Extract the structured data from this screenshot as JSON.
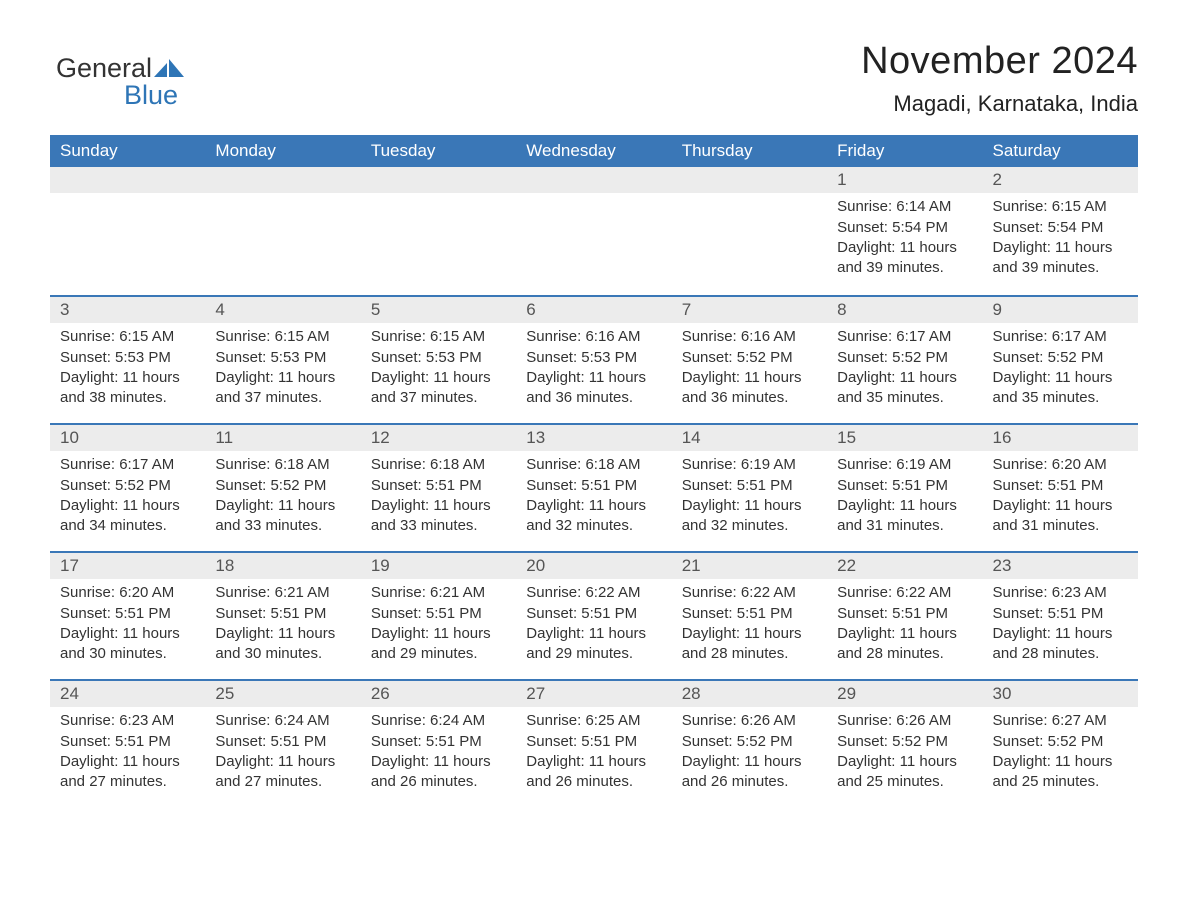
{
  "logo": {
    "word1": "General",
    "word2": "Blue"
  },
  "header": {
    "title": "November 2024",
    "subtitle": "Magadi, Karnataka, India"
  },
  "colors": {
    "header_bg": "#3a77b7",
    "header_text": "#ffffff",
    "daynum_bg": "#ececec",
    "row_border": "#3a77b7",
    "body_text": "#333333",
    "logo_blue": "#2e75b6",
    "page_bg": "#ffffff"
  },
  "fonts": {
    "title_size": 38,
    "subtitle_size": 22,
    "weekday_size": 17,
    "daynum_size": 17,
    "content_size": 15
  },
  "weekdays": [
    "Sunday",
    "Monday",
    "Tuesday",
    "Wednesday",
    "Thursday",
    "Friday",
    "Saturday"
  ],
  "weeks": [
    [
      {
        "day": "",
        "sunrise": "",
        "sunset": "",
        "daylight": ""
      },
      {
        "day": "",
        "sunrise": "",
        "sunset": "",
        "daylight": ""
      },
      {
        "day": "",
        "sunrise": "",
        "sunset": "",
        "daylight": ""
      },
      {
        "day": "",
        "sunrise": "",
        "sunset": "",
        "daylight": ""
      },
      {
        "day": "",
        "sunrise": "",
        "sunset": "",
        "daylight": ""
      },
      {
        "day": "1",
        "sunrise": "Sunrise: 6:14 AM",
        "sunset": "Sunset: 5:54 PM",
        "daylight": "Daylight: 11 hours and 39 minutes."
      },
      {
        "day": "2",
        "sunrise": "Sunrise: 6:15 AM",
        "sunset": "Sunset: 5:54 PM",
        "daylight": "Daylight: 11 hours and 39 minutes."
      }
    ],
    [
      {
        "day": "3",
        "sunrise": "Sunrise: 6:15 AM",
        "sunset": "Sunset: 5:53 PM",
        "daylight": "Daylight: 11 hours and 38 minutes."
      },
      {
        "day": "4",
        "sunrise": "Sunrise: 6:15 AM",
        "sunset": "Sunset: 5:53 PM",
        "daylight": "Daylight: 11 hours and 37 minutes."
      },
      {
        "day": "5",
        "sunrise": "Sunrise: 6:15 AM",
        "sunset": "Sunset: 5:53 PM",
        "daylight": "Daylight: 11 hours and 37 minutes."
      },
      {
        "day": "6",
        "sunrise": "Sunrise: 6:16 AM",
        "sunset": "Sunset: 5:53 PM",
        "daylight": "Daylight: 11 hours and 36 minutes."
      },
      {
        "day": "7",
        "sunrise": "Sunrise: 6:16 AM",
        "sunset": "Sunset: 5:52 PM",
        "daylight": "Daylight: 11 hours and 36 minutes."
      },
      {
        "day": "8",
        "sunrise": "Sunrise: 6:17 AM",
        "sunset": "Sunset: 5:52 PM",
        "daylight": "Daylight: 11 hours and 35 minutes."
      },
      {
        "day": "9",
        "sunrise": "Sunrise: 6:17 AM",
        "sunset": "Sunset: 5:52 PM",
        "daylight": "Daylight: 11 hours and 35 minutes."
      }
    ],
    [
      {
        "day": "10",
        "sunrise": "Sunrise: 6:17 AM",
        "sunset": "Sunset: 5:52 PM",
        "daylight": "Daylight: 11 hours and 34 minutes."
      },
      {
        "day": "11",
        "sunrise": "Sunrise: 6:18 AM",
        "sunset": "Sunset: 5:52 PM",
        "daylight": "Daylight: 11 hours and 33 minutes."
      },
      {
        "day": "12",
        "sunrise": "Sunrise: 6:18 AM",
        "sunset": "Sunset: 5:51 PM",
        "daylight": "Daylight: 11 hours and 33 minutes."
      },
      {
        "day": "13",
        "sunrise": "Sunrise: 6:18 AM",
        "sunset": "Sunset: 5:51 PM",
        "daylight": "Daylight: 11 hours and 32 minutes."
      },
      {
        "day": "14",
        "sunrise": "Sunrise: 6:19 AM",
        "sunset": "Sunset: 5:51 PM",
        "daylight": "Daylight: 11 hours and 32 minutes."
      },
      {
        "day": "15",
        "sunrise": "Sunrise: 6:19 AM",
        "sunset": "Sunset: 5:51 PM",
        "daylight": "Daylight: 11 hours and 31 minutes."
      },
      {
        "day": "16",
        "sunrise": "Sunrise: 6:20 AM",
        "sunset": "Sunset: 5:51 PM",
        "daylight": "Daylight: 11 hours and 31 minutes."
      }
    ],
    [
      {
        "day": "17",
        "sunrise": "Sunrise: 6:20 AM",
        "sunset": "Sunset: 5:51 PM",
        "daylight": "Daylight: 11 hours and 30 minutes."
      },
      {
        "day": "18",
        "sunrise": "Sunrise: 6:21 AM",
        "sunset": "Sunset: 5:51 PM",
        "daylight": "Daylight: 11 hours and 30 minutes."
      },
      {
        "day": "19",
        "sunrise": "Sunrise: 6:21 AM",
        "sunset": "Sunset: 5:51 PM",
        "daylight": "Daylight: 11 hours and 29 minutes."
      },
      {
        "day": "20",
        "sunrise": "Sunrise: 6:22 AM",
        "sunset": "Sunset: 5:51 PM",
        "daylight": "Daylight: 11 hours and 29 minutes."
      },
      {
        "day": "21",
        "sunrise": "Sunrise: 6:22 AM",
        "sunset": "Sunset: 5:51 PM",
        "daylight": "Daylight: 11 hours and 28 minutes."
      },
      {
        "day": "22",
        "sunrise": "Sunrise: 6:22 AM",
        "sunset": "Sunset: 5:51 PM",
        "daylight": "Daylight: 11 hours and 28 minutes."
      },
      {
        "day": "23",
        "sunrise": "Sunrise: 6:23 AM",
        "sunset": "Sunset: 5:51 PM",
        "daylight": "Daylight: 11 hours and 28 minutes."
      }
    ],
    [
      {
        "day": "24",
        "sunrise": "Sunrise: 6:23 AM",
        "sunset": "Sunset: 5:51 PM",
        "daylight": "Daylight: 11 hours and 27 minutes."
      },
      {
        "day": "25",
        "sunrise": "Sunrise: 6:24 AM",
        "sunset": "Sunset: 5:51 PM",
        "daylight": "Daylight: 11 hours and 27 minutes."
      },
      {
        "day": "26",
        "sunrise": "Sunrise: 6:24 AM",
        "sunset": "Sunset: 5:51 PM",
        "daylight": "Daylight: 11 hours and 26 minutes."
      },
      {
        "day": "27",
        "sunrise": "Sunrise: 6:25 AM",
        "sunset": "Sunset: 5:51 PM",
        "daylight": "Daylight: 11 hours and 26 minutes."
      },
      {
        "day": "28",
        "sunrise": "Sunrise: 6:26 AM",
        "sunset": "Sunset: 5:52 PM",
        "daylight": "Daylight: 11 hours and 26 minutes."
      },
      {
        "day": "29",
        "sunrise": "Sunrise: 6:26 AM",
        "sunset": "Sunset: 5:52 PM",
        "daylight": "Daylight: 11 hours and 25 minutes."
      },
      {
        "day": "30",
        "sunrise": "Sunrise: 6:27 AM",
        "sunset": "Sunset: 5:52 PM",
        "daylight": "Daylight: 11 hours and 25 minutes."
      }
    ]
  ]
}
